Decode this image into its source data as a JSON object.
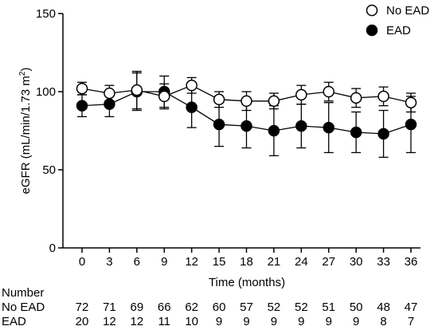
{
  "chart_data": {
    "type": "line",
    "xlabel": "Time (months)",
    "ylabel": "eGFR (mL/min/1.73 m",
    "ylabel_sup": "2",
    "ylabel_end": ")",
    "ylim": [
      0,
      150
    ],
    "y_ticks": [
      "0",
      "50",
      "100",
      "150"
    ],
    "x": [
      0,
      3,
      6,
      9,
      12,
      15,
      18,
      21,
      24,
      27,
      30,
      33,
      36
    ],
    "x_ticks": [
      "0",
      "3",
      "6",
      "9",
      "12",
      "15",
      "18",
      "21",
      "24",
      "27",
      "30",
      "33",
      "36"
    ],
    "legend_position": "top-right",
    "grid": false,
    "series": [
      {
        "name": "No EAD",
        "marker": "open-circle",
        "color": "#000000",
        "values": [
          102,
          99,
          101,
          97,
          104,
          95,
          94,
          94,
          98,
          100,
          96,
          97,
          93
        ],
        "errors": [
          4,
          5,
          12,
          8,
          5,
          5,
          6,
          5,
          6,
          6,
          6,
          6,
          6
        ]
      },
      {
        "name": "EAD",
        "marker": "filled-circle",
        "color": "#000000",
        "values": [
          91,
          92,
          100,
          100,
          90,
          79,
          78,
          75,
          78,
          77,
          74,
          73,
          79
        ],
        "errors": [
          7,
          8,
          12,
          10,
          13,
          14,
          14,
          16,
          14,
          16,
          13,
          15,
          18
        ]
      }
    ],
    "number_table": {
      "header": "Number",
      "rows": [
        {
          "label": "No EAD",
          "values": [
            "72",
            "71",
            "69",
            "66",
            "62",
            "60",
            "57",
            "52",
            "52",
            "51",
            "50",
            "48",
            "47"
          ]
        },
        {
          "label": "EAD",
          "values": [
            "20",
            "12",
            "12",
            "11",
            "10",
            "9",
            "9",
            "9",
            "9",
            "9",
            "9",
            "8",
            "7"
          ]
        }
      ]
    }
  }
}
